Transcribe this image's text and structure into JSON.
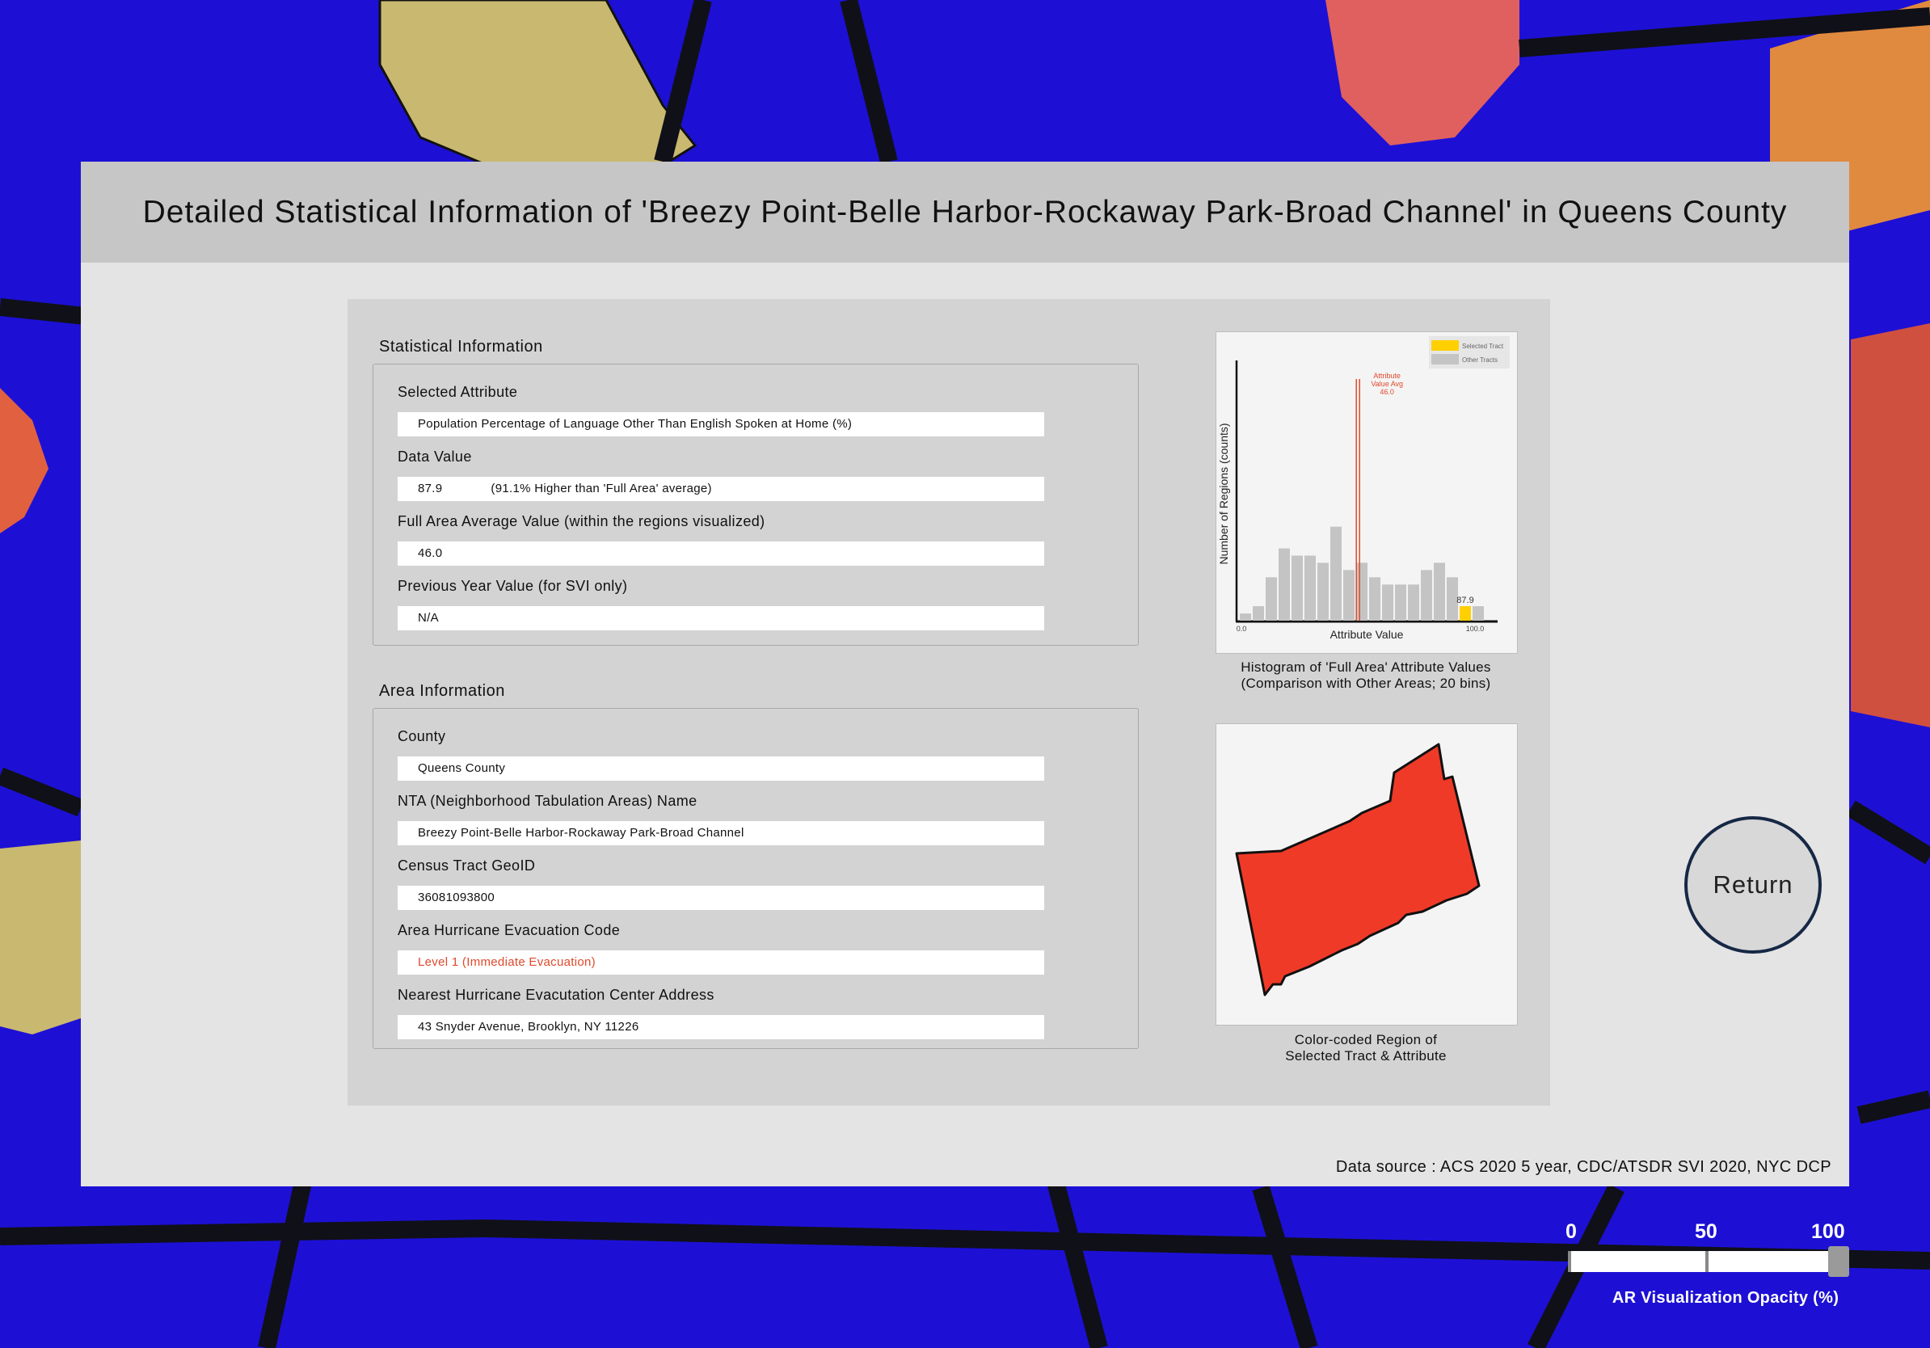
{
  "title": "Detailed Statistical Information of 'Breezy Point-Belle Harbor-Rockaway Park-Broad Channel' in Queens County",
  "stats_section": {
    "heading": "Statistical Information",
    "selected_attribute_label": "Selected Attribute",
    "selected_attribute_value": "Population Percentage of Language Other Than English Spoken at Home (%)",
    "data_value_label": "Data Value",
    "data_value": "87.9",
    "data_value_comparison": "(91.1% Higher than 'Full Area' average)",
    "full_area_label": "Full Area Average Value (within the regions visualized)",
    "full_area_value": "46.0",
    "prev_year_label": "Previous Year Value (for SVI only)",
    "prev_year_value": "N/A"
  },
  "area_section": {
    "heading": "Area Information",
    "county_label": "County",
    "county_value": "Queens County",
    "nta_label": "NTA (Neighborhood Tabulation Areas) Name",
    "nta_value": "Breezy Point-Belle Harbor-Rockaway Park-Broad Channel",
    "geoid_label": "Census Tract GeoID",
    "geoid_value": "36081093800",
    "evac_code_label": "Area Hurricane Evacuation Code",
    "evac_code_value": "Level 1 (Immediate Evacuation)",
    "evac_center_label": "Nearest Hurricane Evacutation Center Address",
    "evac_center_value": "43 Snyder Avenue, Brooklyn, NY 11226"
  },
  "histogram_caption_line1": "Histogram of 'Full Area' Attribute Values",
  "histogram_caption_line2": "(Comparison with Other Areas; 20 bins)",
  "map_caption_line1": "Color-coded Region of",
  "map_caption_line2": "Selected Tract & Attribute",
  "data_source": "Data source : ACS 2020 5 year, CDC/ATSDR SVI 2020, NYC DCP",
  "return_label": "Return",
  "opacity_slider": {
    "label": "AR Visualization Opacity (%)",
    "tick_labels": [
      "0",
      "50",
      "100"
    ],
    "value": 100
  },
  "colors": {
    "selected_tract": "#ffd000",
    "other_tracts": "#c4c4c4",
    "avg_line": "#e0492b",
    "region_fill": "#f03a28",
    "evac_text": "#e0492b"
  },
  "chart_data": {
    "type": "bar",
    "xlabel": "Attribute Value",
    "ylabel": "Number of Regions (counts)",
    "xlim": [
      0.0,
      100.0
    ],
    "x_tick_labels": [
      "0.0",
      "100.0"
    ],
    "bins": 20,
    "series": [
      {
        "name": "Other Tracts",
        "values": [
          1,
          2,
          6,
          10,
          9,
          9,
          8,
          13,
          7,
          8,
          6,
          5,
          5,
          5,
          7,
          8,
          6,
          2,
          2,
          0
        ]
      },
      {
        "name": "Selected Tract",
        "values": [
          0,
          0,
          0,
          0,
          0,
          0,
          0,
          0,
          0,
          0,
          0,
          0,
          0,
          0,
          0,
          0,
          0,
          2,
          0,
          0
        ]
      }
    ],
    "legend": [
      "Selected Tract",
      "Other Tracts"
    ],
    "legend_position": "top-right",
    "avg_line": {
      "value": 46.0,
      "label_lines": [
        "Attribute",
        "Value Avg",
        "46.0"
      ]
    },
    "selected_value_label": "87.9"
  }
}
